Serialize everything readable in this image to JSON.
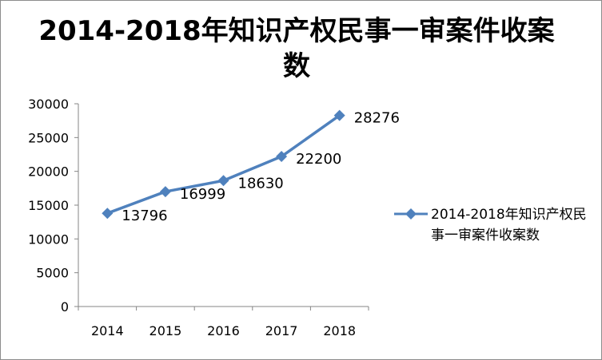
{
  "chart_data": {
    "type": "line",
    "title": "2014-2018年知识产权民事一审案件收案数",
    "xlabel": "",
    "ylabel": "",
    "categories": [
      "2014",
      "2015",
      "2016",
      "2017",
      "2018"
    ],
    "series": [
      {
        "name": "2014-2018年知识产权民事一审案件收案数",
        "values": [
          13796,
          16999,
          18630,
          22200,
          28276
        ],
        "color": "#4f81bd",
        "marker": "diamond"
      }
    ],
    "data_labels": [
      "13796",
      "16999",
      "18630",
      "22200",
      "28276"
    ],
    "ylim": [
      0,
      30000
    ],
    "yticks": [
      "0",
      "5000",
      "10000",
      "15000",
      "20000",
      "25000",
      "30000"
    ],
    "grid": false,
    "legend": "right"
  }
}
